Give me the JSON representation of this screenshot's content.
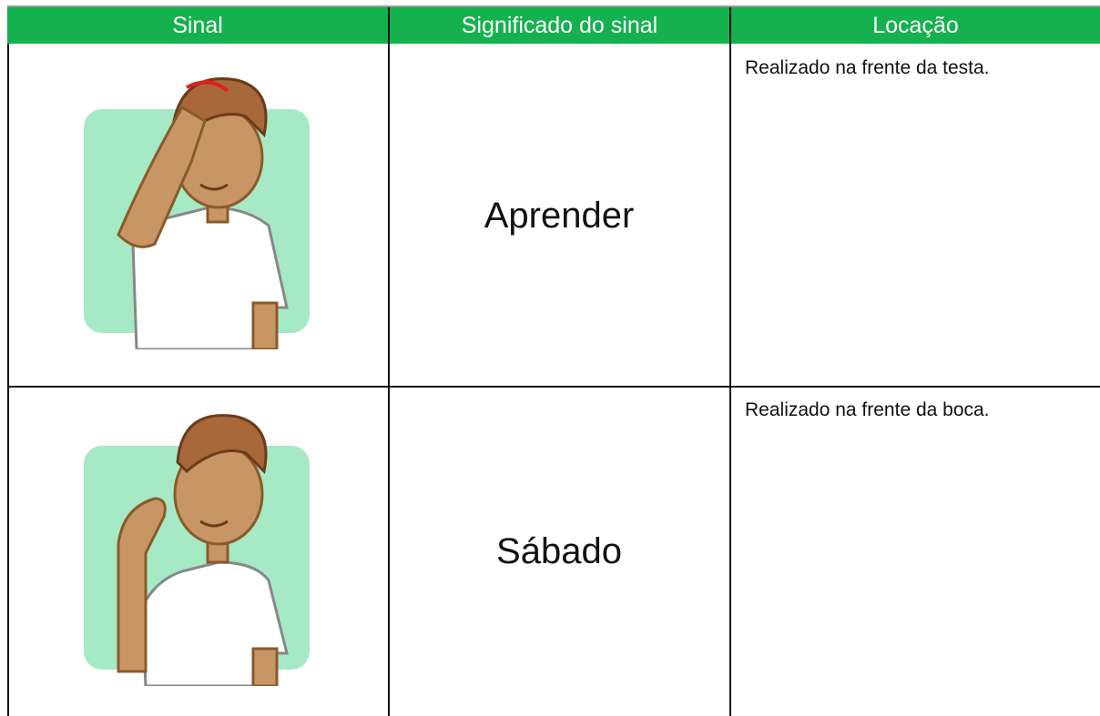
{
  "table": {
    "header": [
      "Sinal",
      "Significado do sinal",
      "Locação"
    ],
    "rows": [
      {
        "meaning": "Aprender",
        "location": "Realizado na frente da testa."
      },
      {
        "meaning": "Sábado",
        "location": "Realizado na frente da boca."
      }
    ]
  }
}
